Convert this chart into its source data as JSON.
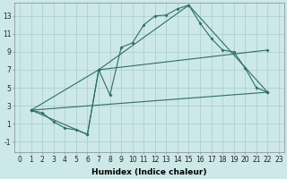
{
  "xlabel": "Humidex (Indice chaleur)",
  "background_color": "#cde8e8",
  "grid_color": "#afd0d0",
  "line_color": "#2d7060",
  "xlim": [
    -0.5,
    23.5
  ],
  "ylim": [
    -2.2,
    14.5
  ],
  "xticks": [
    0,
    1,
    2,
    3,
    4,
    5,
    6,
    7,
    8,
    9,
    10,
    11,
    12,
    13,
    14,
    15,
    16,
    17,
    18,
    19,
    20,
    21,
    22,
    23
  ],
  "yticks": [
    -1,
    1,
    3,
    5,
    7,
    9,
    11,
    13
  ],
  "line1_x": [
    1,
    2,
    3,
    4,
    5,
    6,
    7,
    8,
    9,
    10,
    11,
    12,
    13,
    14,
    15,
    16,
    17,
    18,
    19,
    20,
    21,
    22
  ],
  "line1_y": [
    2.5,
    2.2,
    1.2,
    0.5,
    0.3,
    -0.2,
    7.0,
    4.2,
    9.5,
    10.0,
    12.0,
    13.0,
    13.1,
    13.8,
    14.2,
    12.2,
    10.5,
    9.2,
    9.0,
    7.2,
    5.0,
    4.5
  ],
  "line2_x": [
    1,
    7,
    15,
    22
  ],
  "line2_y": [
    2.5,
    7.0,
    14.2,
    4.5
  ],
  "line3_x": [
    1,
    22
  ],
  "line3_y": [
    2.5,
    4.5
  ],
  "line4_x": [
    1,
    6,
    7,
    22
  ],
  "line4_y": [
    2.5,
    -0.2,
    7.0,
    9.2
  ],
  "fontsize_axis": 6.5,
  "fontsize_ticks": 5.5
}
